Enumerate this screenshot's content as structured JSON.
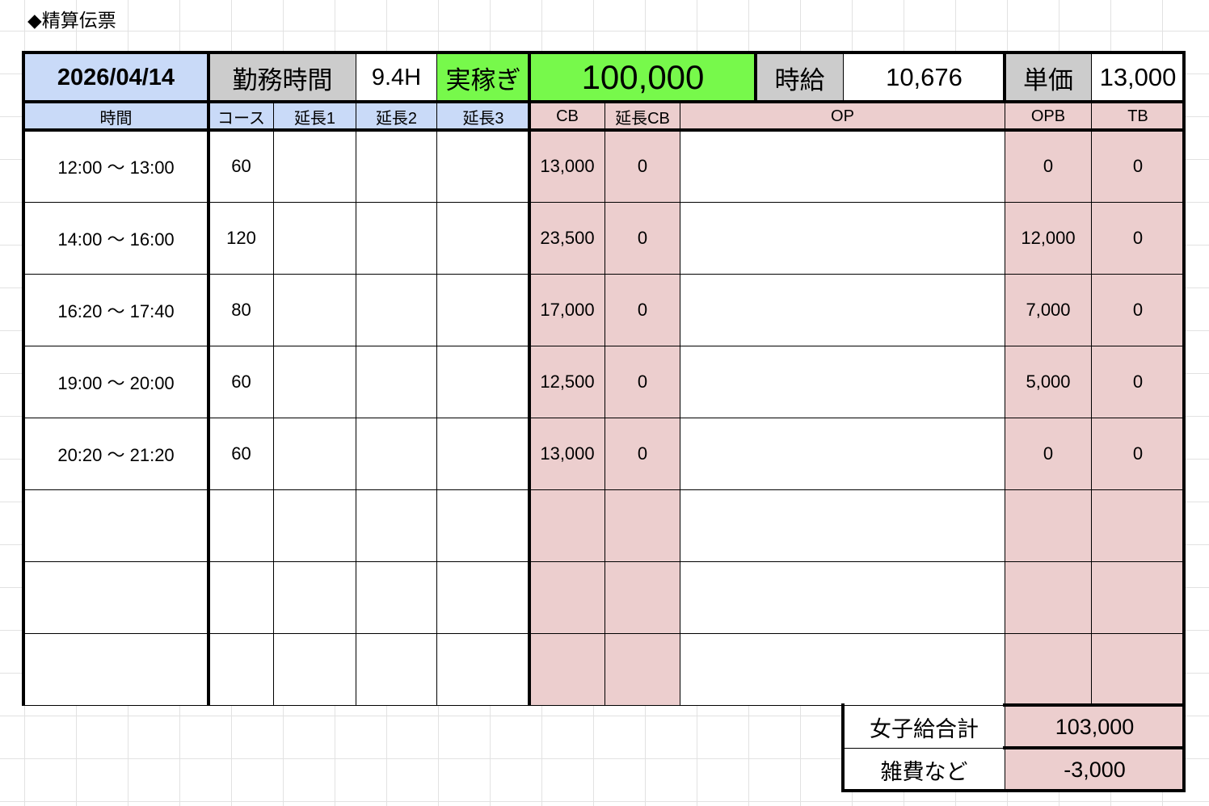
{
  "sheet_title": "◆精算伝票",
  "header": {
    "date": "2026/04/14",
    "work_hours_label": "勤務時間",
    "work_hours": "9.4H",
    "earnings_label": "実稼ぎ",
    "earnings": "100,000",
    "hourly_label": "時給",
    "hourly": "10,676",
    "unit_price_label": "単価",
    "unit_price": "13,000"
  },
  "columns": [
    "時間",
    "コース",
    "延長1",
    "延長2",
    "延長3",
    "CB",
    "延長CB",
    "OP",
    "OPB",
    "TB"
  ],
  "rows": [
    [
      "12:00 〜 13:00",
      "60",
      "",
      "",
      "",
      "13,000",
      "0",
      "",
      "0",
      "0"
    ],
    [
      "14:00 〜 16:00",
      "120",
      "",
      "",
      "",
      "23,500",
      "0",
      "",
      "12,000",
      "0"
    ],
    [
      "16:20 〜 17:40",
      "80",
      "",
      "",
      "",
      "17,000",
      "0",
      "",
      "7,000",
      "0"
    ],
    [
      "19:00 〜 20:00",
      "60",
      "",
      "",
      "",
      "12,500",
      "0",
      "",
      "5,000",
      "0"
    ],
    [
      "20:20 〜 21:20",
      "60",
      "",
      "",
      "",
      "13,000",
      "0",
      "",
      "0",
      "0"
    ],
    [
      "",
      "",
      "",
      "",
      "",
      "",
      "",
      "",
      "",
      ""
    ],
    [
      "",
      "",
      "",
      "",
      "",
      "",
      "",
      "",
      "",
      ""
    ],
    [
      "",
      "",
      "",
      "",
      "",
      "",
      "",
      "",
      "",
      ""
    ]
  ],
  "summary": {
    "total_label": "女子給合計",
    "total": "103,000",
    "misc_label": "雑費など",
    "misc": "-3,000"
  },
  "colors": {
    "blue": "#c9daf8",
    "gray": "#cccccc",
    "green": "#77f94b",
    "pink": "#eccece"
  }
}
